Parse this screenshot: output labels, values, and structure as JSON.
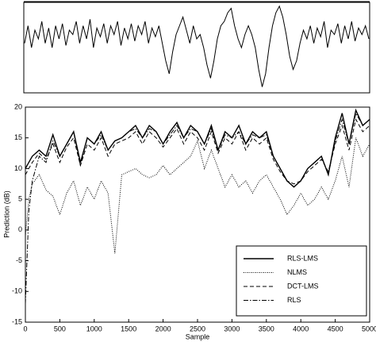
{
  "chart_data": [
    {
      "type": "line",
      "color": "#000000",
      "ylim": [
        -1,
        1
      ],
      "values": [
        0.1,
        0.5,
        0.0,
        0.4,
        0.2,
        0.6,
        0.1,
        0.45,
        0.0,
        0.5,
        0.2,
        0.55,
        0.05,
        0.4,
        0.3,
        0.6,
        0.1,
        0.5,
        0.2,
        0.65,
        0.0,
        0.45,
        0.25,
        0.55,
        0.1,
        0.5,
        0.3,
        0.6,
        0.05,
        0.45,
        0.2,
        0.55,
        0.15,
        0.5,
        0.3,
        0.6,
        0.1,
        0.45,
        0.25,
        0.5,
        0.1,
        -0.3,
        -0.6,
        -0.1,
        0.3,
        0.5,
        0.7,
        0.4,
        0.1,
        0.5,
        0.2,
        0.3,
        0.0,
        -0.4,
        -0.7,
        -0.3,
        0.2,
        0.5,
        0.6,
        0.8,
        0.9,
        0.5,
        0.2,
        0.0,
        0.3,
        0.5,
        0.3,
        0.0,
        -0.5,
        -0.9,
        -0.6,
        0.0,
        0.5,
        0.8,
        0.95,
        0.7,
        0.3,
        -0.2,
        -0.5,
        -0.3,
        0.1,
        0.4,
        0.2,
        0.5,
        0.1,
        0.45,
        0.25,
        0.6,
        0.0,
        0.4,
        0.3,
        0.55,
        0.1,
        0.5,
        0.2,
        0.6,
        0.15,
        0.45,
        0.3,
        0.5,
        0.2
      ]
    },
    {
      "type": "line",
      "x_label": "Sample",
      "y_label": "Prediction (dB)",
      "xlim": [
        0,
        5000
      ],
      "ylim": [
        -15,
        20
      ],
      "xticks": [
        0,
        500,
        1000,
        1500,
        2000,
        2500,
        3000,
        3500,
        4000,
        4500,
        5000
      ],
      "yticks": [
        -15,
        -10,
        -5,
        0,
        5,
        10,
        15,
        20
      ],
      "legend": "lower right",
      "x": [
        0,
        50,
        100,
        200,
        300,
        400,
        500,
        600,
        700,
        800,
        900,
        1000,
        1100,
        1200,
        1300,
        1400,
        1500,
        1600,
        1700,
        1800,
        1900,
        2000,
        2100,
        2200,
        2300,
        2400,
        2500,
        2600,
        2700,
        2800,
        2900,
        3000,
        3100,
        3200,
        3300,
        3400,
        3500,
        3600,
        3700,
        3800,
        3900,
        4000,
        4100,
        4200,
        4300,
        4400,
        4500,
        4600,
        4700,
        4800,
        4900,
        5000
      ],
      "series": [
        {
          "name": "RLS-LMS",
          "color": "#000000",
          "dash": "solid",
          "values": [
            10,
            11,
            12,
            13,
            12,
            15.5,
            12,
            14,
            16,
            11,
            15,
            14,
            16,
            13,
            14.5,
            15,
            16,
            17,
            15,
            17,
            16,
            14,
            16,
            17.5,
            15,
            17,
            16,
            14,
            17,
            13,
            16,
            15,
            17,
            14,
            16,
            15,
            16,
            12,
            10,
            8,
            7,
            8,
            10,
            11,
            12,
            9,
            15,
            19,
            14,
            19.5,
            17,
            18
          ]
        },
        {
          "name": "NLMS",
          "color": "#000000",
          "dash": "dotted",
          "values": [
            -1,
            5,
            7.5,
            9,
            6.5,
            5.5,
            2.5,
            6,
            8,
            4,
            7,
            5,
            8,
            6,
            -3.8,
            9,
            9.5,
            10,
            9,
            8.5,
            9,
            10.5,
            9,
            10,
            11,
            12,
            14.5,
            10,
            13,
            10,
            7,
            9,
            7,
            8,
            6,
            8,
            9,
            7,
            5,
            2.5,
            4,
            6,
            4,
            5,
            7,
            5,
            8,
            12,
            7,
            15,
            12,
            14
          ]
        },
        {
          "name": "DCT-LMS",
          "color": "#000000",
          "dash": "dashed",
          "values": [
            9,
            10,
            11,
            12.5,
            11.5,
            14,
            11,
            13.5,
            15,
            10.5,
            14,
            13,
            15,
            12,
            14,
            14.5,
            15,
            16,
            14,
            16,
            15,
            13.5,
            15,
            16.5,
            14,
            16,
            15,
            13,
            16,
            12.5,
            15,
            14,
            16,
            13,
            15,
            14,
            15,
            11.5,
            9.5,
            8,
            7.5,
            8,
            9.5,
            10.5,
            11.5,
            9.5,
            14,
            17,
            13,
            18,
            16,
            17
          ]
        },
        {
          "name": "RLS",
          "color": "#000000",
          "dash": "dashdot",
          "values": [
            -12,
            3,
            8,
            12,
            11,
            14.5,
            12,
            14,
            16,
            10.5,
            15,
            14,
            15.5,
            13,
            14.5,
            15,
            16,
            16.5,
            15,
            16.5,
            16,
            14,
            15.5,
            17,
            15,
            16.5,
            16,
            14,
            16.5,
            13,
            15.5,
            15,
            16,
            14,
            15.5,
            15,
            15.5,
            12,
            10,
            8,
            7,
            8,
            10,
            11,
            12,
            9,
            14.5,
            18,
            14,
            19,
            17,
            18
          ]
        }
      ]
    }
  ]
}
